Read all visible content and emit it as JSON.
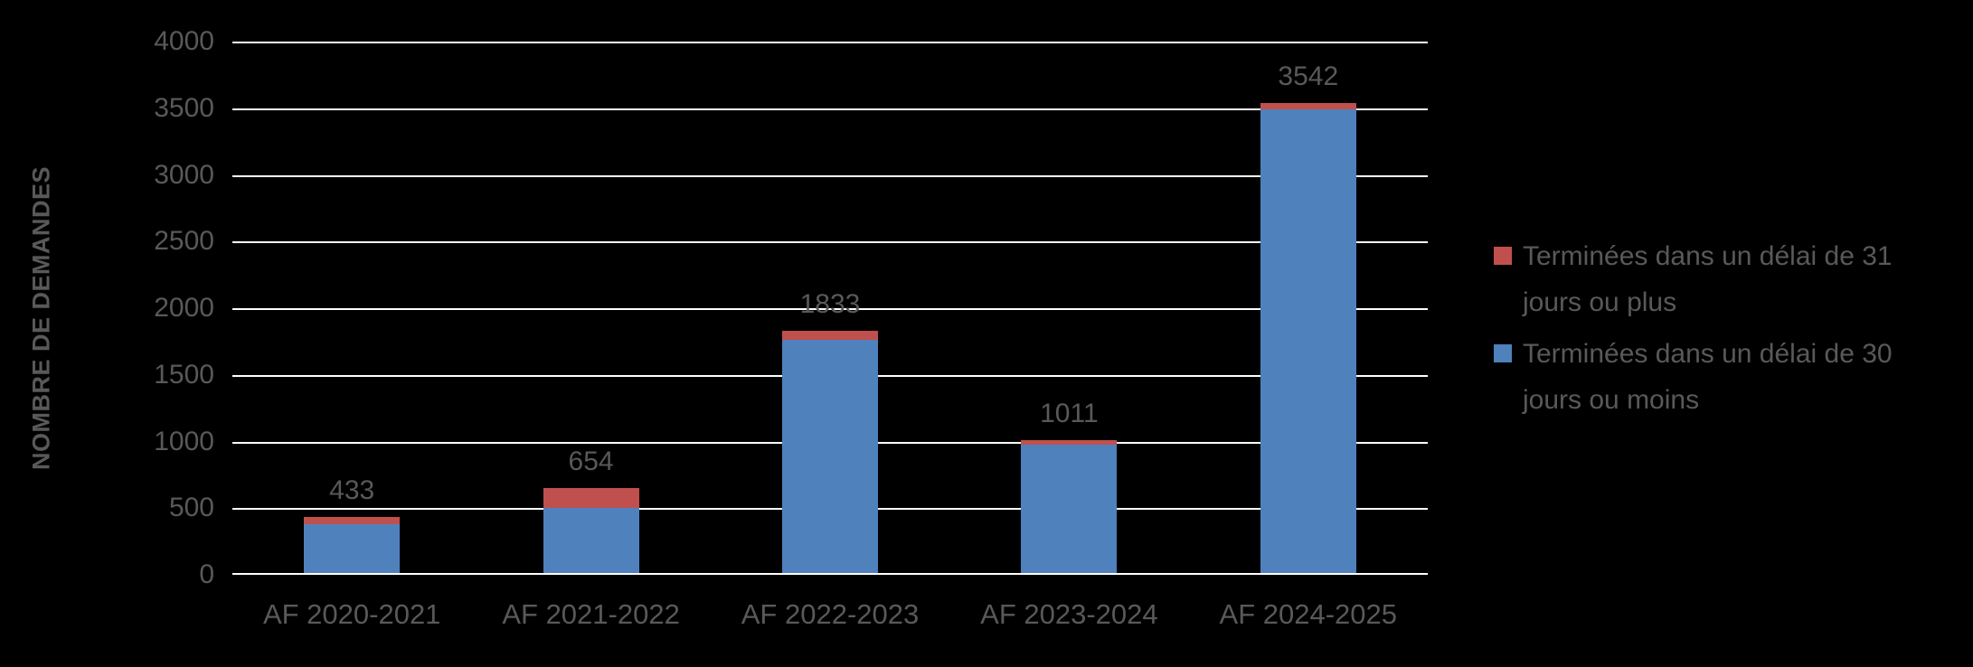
{
  "chart_data": {
    "type": "bar",
    "stacked": true,
    "title": "",
    "ylabel": "NOMBRE DE DEMANDES",
    "xlabel": "",
    "ylim": [
      0,
      4000
    ],
    "yticks": [
      4000,
      3500,
      3000,
      2500,
      2000,
      1500,
      1000,
      500,
      0
    ],
    "grid": true,
    "legend_position": "right",
    "categories": [
      "AF 2020-2021",
      "AF 2021-2022",
      "AF 2022-2023",
      "AF 2023-2024",
      "AF 2024-2025"
    ],
    "series": [
      {
        "name": "Terminées dans un délai de 30 jours ou moins",
        "color": "#4F81BD",
        "values": [
          380,
          500,
          1760,
          975,
          3495
        ]
      },
      {
        "name": "Terminées dans un délai de 31 jours ou plus",
        "color": "#C0504D",
        "values": [
          53,
          154,
          73,
          36,
          47
        ]
      }
    ],
    "totals": [
      433,
      654,
      1833,
      1011,
      3542
    ],
    "total_labels": [
      "433",
      "654",
      "1833",
      "1011",
      "3542"
    ],
    "legend": [
      {
        "label": "Terminées dans un délai de 31 jours ou plus",
        "color": "#C0504D"
      },
      {
        "label": "Terminées dans un délai de 30 jours ou moins",
        "color": "#4F81BD"
      }
    ]
  },
  "colors": {
    "background": "#000000",
    "text": "#595959",
    "gridline": "#FFFFFF",
    "series_blue": "#4F81BD",
    "series_red": "#C0504D"
  }
}
